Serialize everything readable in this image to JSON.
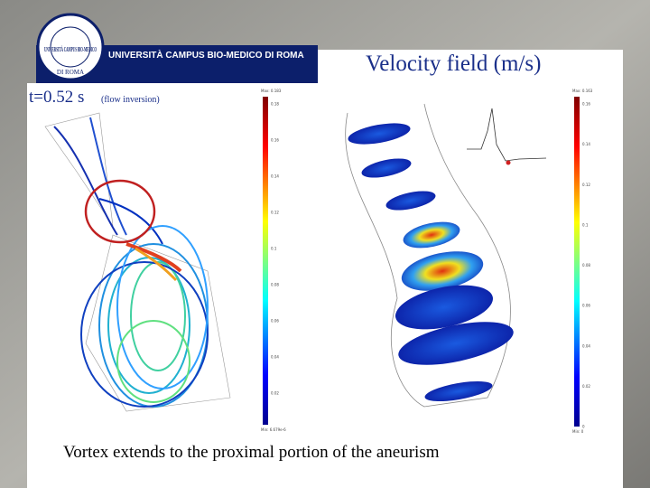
{
  "header": {
    "logo_text": "UNIVERSITÀ CAMPUS BIO-MEDICO DI ROMA",
    "logo_ring": "UNIVERSITÀ CAMPUS BIO-MEDICO",
    "logo_bottom": "DI ROMA",
    "title": "Velocity field (m/s)"
  },
  "time": {
    "label": "t=0.52 s",
    "note": "(flow inversion)"
  },
  "left_colorbar": {
    "max": "Max: 0.183",
    "min": "Min: 6.679e-6",
    "ticks": [
      "0.18",
      "0.16",
      "0.14",
      "0.12",
      "0.1",
      "0.08",
      "0.06",
      "0.04",
      "0.02"
    ]
  },
  "right_colorbar": {
    "max": "Max: 0.163",
    "min": "Min: 0",
    "ticks": [
      "0.16",
      "0.14",
      "0.12",
      "0.1",
      "0.08",
      "0.06",
      "0.04",
      "0.02",
      "0"
    ]
  },
  "caption": "Vortex extends to the proximal portion of the aneurism"
}
